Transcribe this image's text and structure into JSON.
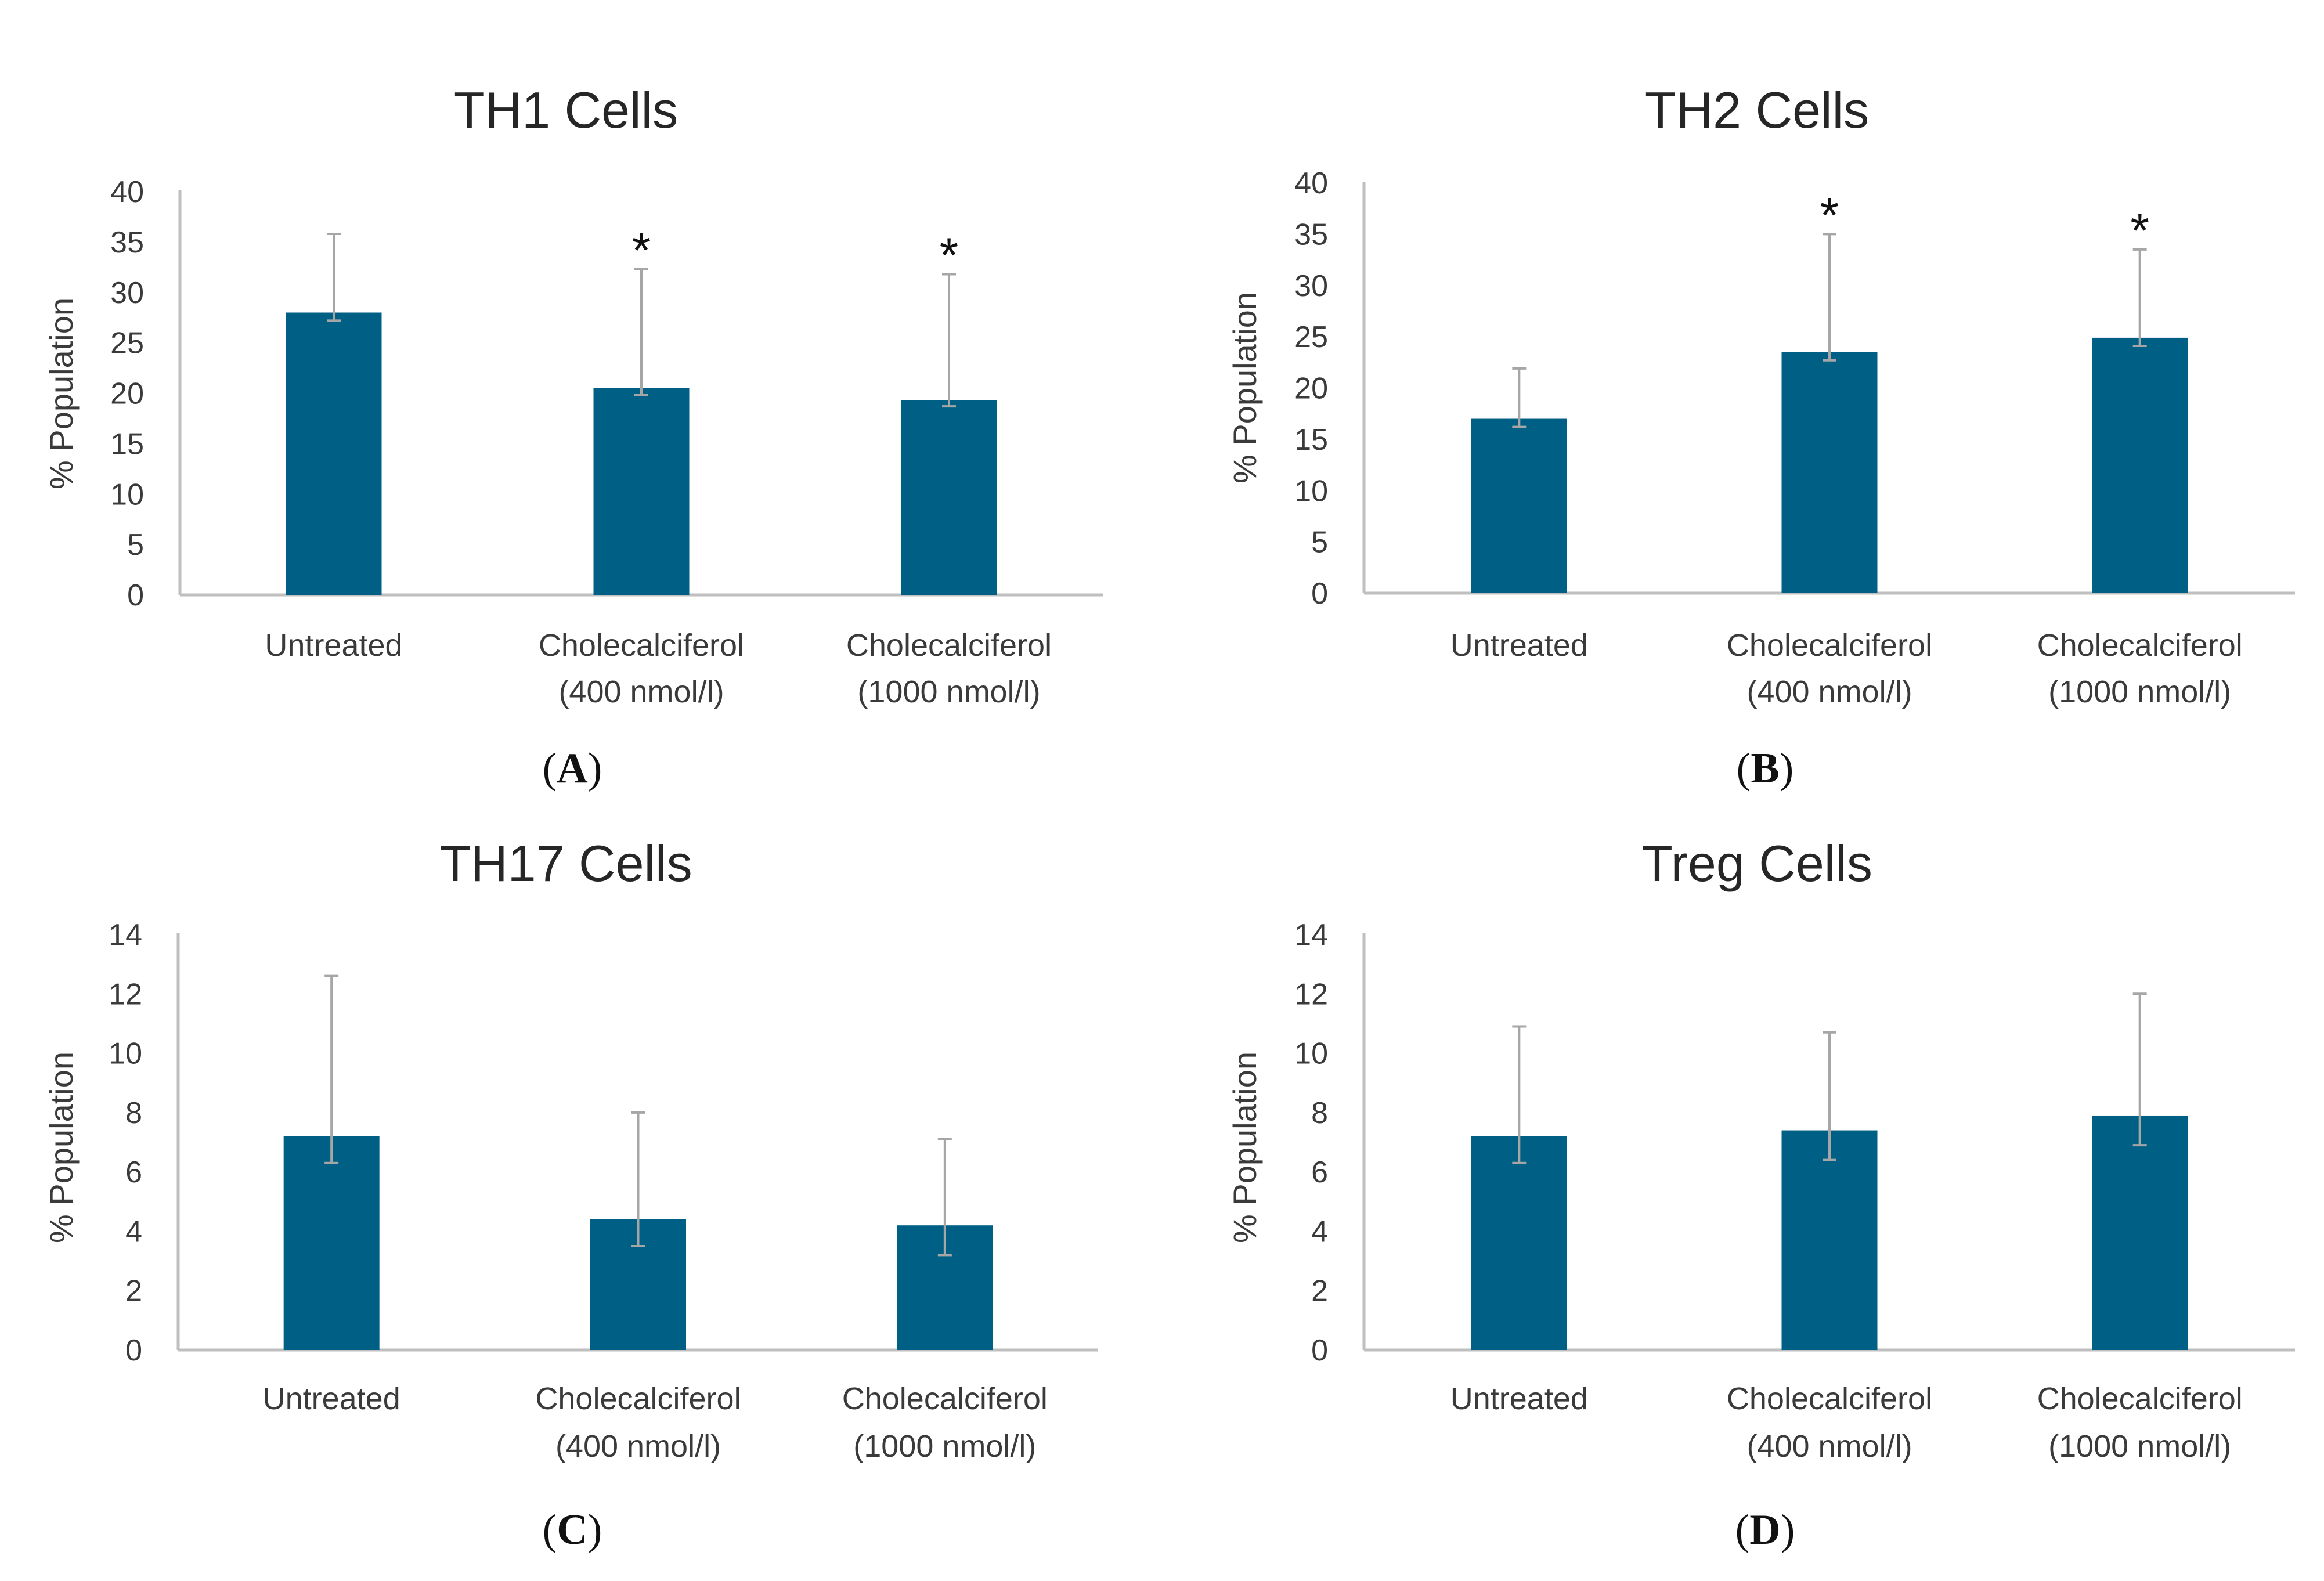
{
  "colors": {
    "bar": "#005f85",
    "axis": "#bfbfbf",
    "error_bar": "#a6a6a6"
  },
  "chart_data": [
    {
      "type": "bar",
      "panel_letter": "A",
      "title": "TH1 Cells",
      "ylabel": "% Population",
      "xlabel": "",
      "ylim": [
        0,
        40
      ],
      "yticks": [
        0,
        5,
        10,
        15,
        20,
        25,
        30,
        35,
        40
      ],
      "categories": [
        [
          "Untreated"
        ],
        [
          "Cholecalciferol",
          "(400 nmol/l)"
        ],
        [
          "Cholecalciferol",
          "(1000 nmol/l)"
        ]
      ],
      "values": [
        28,
        20.5,
        19.3
      ],
      "error_upper": [
        35.8,
        32.3,
        31.8
      ],
      "error_lower": [
        27.2,
        19.8,
        18.7
      ],
      "significance": [
        "",
        "*",
        "*"
      ]
    },
    {
      "type": "bar",
      "panel_letter": "B",
      "title": "TH2 Cells",
      "ylabel": "% Population",
      "xlabel": "",
      "ylim": [
        0,
        40
      ],
      "yticks": [
        0,
        5,
        10,
        15,
        20,
        25,
        30,
        35,
        40
      ],
      "categories": [
        [
          "Untreated"
        ],
        [
          "Cholecalciferol",
          "(400 nmol/l)"
        ],
        [
          "Cholecalciferol",
          "(1000 nmol/l)"
        ]
      ],
      "values": [
        17,
        23.5,
        24.9
      ],
      "error_upper": [
        21.9,
        35,
        33.5
      ],
      "error_lower": [
        16.2,
        22.7,
        24.1
      ],
      "significance": [
        "",
        "*",
        "*"
      ]
    },
    {
      "type": "bar",
      "panel_letter": "C",
      "title": "TH17 Cells",
      "ylabel": "% Population",
      "xlabel": "",
      "ylim": [
        0,
        14
      ],
      "yticks": [
        0,
        2,
        4,
        6,
        8,
        10,
        12,
        14
      ],
      "categories": [
        [
          "Untreated"
        ],
        [
          "Cholecalciferol",
          "(400 nmol/l)"
        ],
        [
          "Cholecalciferol",
          "(1000 nmol/l)"
        ]
      ],
      "values": [
        7.2,
        4.4,
        4.2
      ],
      "error_upper": [
        12.6,
        8,
        7.1
      ],
      "error_lower": [
        6.3,
        3.5,
        3.2
      ],
      "significance": [
        "",
        "",
        ""
      ]
    },
    {
      "type": "bar",
      "panel_letter": "D",
      "title": "Treg Cells",
      "ylabel": "% Population",
      "xlabel": "",
      "ylim": [
        0,
        14
      ],
      "yticks": [
        0,
        2,
        4,
        6,
        8,
        10,
        12,
        14
      ],
      "categories": [
        [
          "Untreated"
        ],
        [
          "Cholecalciferol",
          "(400 nmol/l)"
        ],
        [
          "Cholecalciferol",
          "(1000 nmol/l)"
        ]
      ],
      "values": [
        7.2,
        7.4,
        7.9
      ],
      "error_upper": [
        10.9,
        10.7,
        12
      ],
      "error_lower": [
        6.3,
        6.4,
        6.9
      ],
      "significance": [
        "",
        "",
        ""
      ]
    }
  ]
}
